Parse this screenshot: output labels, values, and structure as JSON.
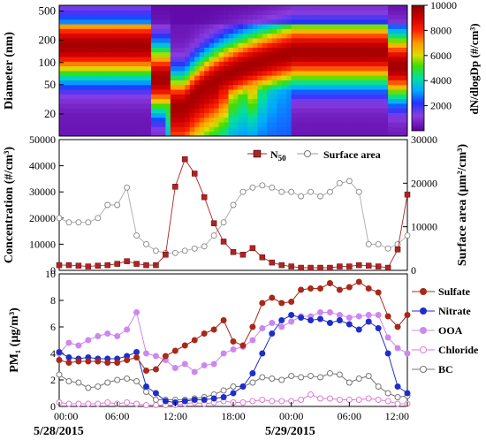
{
  "chart_data": [
    {
      "type": "heatmap",
      "ylabel": "Diameter (nm)",
      "y_ticks": [
        "20",
        "50",
        "100",
        "200",
        "500"
      ],
      "ylim_nm": [
        10,
        600
      ],
      "log_scale_y": true,
      "colorbar": {
        "label": "dN/dlogDp (#/cm³)",
        "ticks": [
          "2000",
          "4000",
          "6000",
          "8000",
          "10000"
        ],
        "range": [
          0,
          10000
        ]
      },
      "x_range_hours": [
        0,
        36
      ]
    },
    {
      "type": "line",
      "ylabel": "Concentration (#/cm³)",
      "y2label": "Surface area (µm²/cm³)",
      "ylim": [
        0,
        50000
      ],
      "y2lim": [
        0,
        30000
      ],
      "y_ticks": [
        "0",
        "10000",
        "20000",
        "30000",
        "40000",
        "50000"
      ],
      "y2_ticks": [
        "0",
        "10000",
        "20000",
        "30000"
      ],
      "legend_position": "top-right",
      "series": [
        {
          "name": "N",
          "name_sub": "50",
          "axis": "left",
          "color": "#b22222",
          "hours": [
            0,
            1,
            2,
            3,
            4,
            5,
            6,
            7,
            8,
            9,
            10,
            11,
            12,
            13,
            14,
            15,
            16,
            17,
            18,
            19,
            20,
            21,
            22,
            23,
            24,
            25,
            26,
            27,
            28,
            29,
            30,
            31,
            32,
            33,
            34,
            35,
            36
          ],
          "values": [
            2000,
            2000,
            1800,
            1500,
            1800,
            2000,
            2500,
            3500,
            2500,
            2000,
            2000,
            6000,
            32000,
            42500,
            37000,
            28000,
            18000,
            11000,
            7000,
            6000,
            8500,
            5000,
            3000,
            2000,
            1500,
            1000,
            1000,
            1000,
            1000,
            1500,
            1500,
            2000,
            1800,
            1500,
            1000,
            8000,
            29000
          ]
        },
        {
          "name": "Surface area",
          "axis": "right",
          "color": "#999999",
          "hours": [
            0,
            1,
            2,
            3,
            4,
            5,
            6,
            7,
            8,
            9,
            10,
            11,
            12,
            13,
            14,
            15,
            16,
            17,
            18,
            19,
            20,
            21,
            22,
            23,
            24,
            25,
            26,
            27,
            28,
            29,
            30,
            31,
            32,
            33,
            34,
            35,
            36
          ],
          "values": [
            12000,
            11000,
            11000,
            11000,
            12000,
            15000,
            15000,
            19000,
            8000,
            6000,
            4500,
            4000,
            4000,
            4500,
            5000,
            5500,
            8000,
            11000,
            15000,
            18000,
            19000,
            19500,
            19000,
            18000,
            18000,
            17000,
            18000,
            17000,
            18000,
            20000,
            20500,
            18000,
            6000,
            6000,
            5000,
            6000,
            8000
          ]
        }
      ]
    },
    {
      "type": "line",
      "ylabel": "PM₁ (µg/m³)",
      "ylim": [
        0,
        10
      ],
      "y_ticks": [
        "0",
        "2",
        "4",
        "6",
        "8",
        "10"
      ],
      "legend_position": "right",
      "x_ticks": [
        "00:00",
        "06:00",
        "12:00",
        "18:00",
        "00:00",
        "06:00",
        "12:00"
      ],
      "x_dates": [
        "5/28/2015",
        "5/29/2015"
      ],
      "series": [
        {
          "name": "Sulfate",
          "color": "#a8281a",
          "hours": [
            0,
            1,
            2,
            3,
            4,
            5,
            6,
            7,
            8,
            9,
            10,
            11,
            12,
            13,
            14,
            15,
            16,
            17,
            18,
            19,
            20,
            21,
            22,
            23,
            24,
            25,
            26,
            27,
            28,
            29,
            30,
            31,
            32,
            33,
            34,
            35,
            36
          ],
          "values": [
            3.5,
            3.3,
            3.4,
            3.4,
            3.4,
            3.3,
            3.3,
            3.5,
            3.7,
            2.7,
            2.8,
            3.8,
            4.2,
            4.6,
            5.0,
            5.5,
            5.8,
            6.5,
            4.9,
            4.6,
            6.0,
            7.8,
            8.2,
            7.8,
            7.9,
            8.8,
            8.9,
            8.9,
            9.3,
            8.8,
            9.0,
            9.4,
            8.9,
            8.6,
            6.8,
            6.0,
            6.9
          ]
        },
        {
          "name": "Nitrate",
          "color": "#1f2ec8",
          "hours": [
            0,
            1,
            2,
            3,
            4,
            5,
            6,
            7,
            8,
            9,
            10,
            11,
            12,
            13,
            14,
            15,
            16,
            17,
            18,
            19,
            20,
            21,
            22,
            23,
            24,
            25,
            26,
            27,
            28,
            29,
            30,
            31,
            32,
            33,
            34,
            35,
            36
          ],
          "values": [
            4.1,
            3.7,
            3.6,
            3.7,
            3.6,
            3.6,
            3.6,
            3.8,
            4.1,
            1.5,
            1.0,
            0.4,
            0.3,
            0.4,
            0.5,
            0.5,
            0.6,
            0.7,
            1.0,
            1.5,
            2.5,
            4.0,
            5.5,
            6.5,
            6.9,
            6.7,
            6.5,
            6.6,
            6.3,
            6.5,
            6.2,
            5.8,
            6.4,
            5.9,
            4.0,
            1.5,
            1.0
          ]
        },
        {
          "name": "OOA",
          "color": "#cc88ee",
          "hours": [
            0,
            1,
            2,
            3,
            4,
            5,
            6,
            7,
            8,
            9,
            10,
            11,
            12,
            13,
            14,
            15,
            16,
            17,
            18,
            19,
            20,
            21,
            22,
            23,
            24,
            25,
            26,
            27,
            28,
            29,
            30,
            31,
            32,
            33,
            34,
            35,
            36
          ],
          "values": [
            4.0,
            4.8,
            4.6,
            5.0,
            5.3,
            5.5,
            5.3,
            5.8,
            7.1,
            4.0,
            3.8,
            3.5,
            2.9,
            3.2,
            2.6,
            3.1,
            3.2,
            4.0,
            4.3,
            4.5,
            5.0,
            5.9,
            6.3,
            6.0,
            6.4,
            6.8,
            6.8,
            7.1,
            7.1,
            6.9,
            6.7,
            6.8,
            6.9,
            6.9,
            5.2,
            4.4,
            4.0
          ]
        },
        {
          "name": "Chloride",
          "color": "#e07bd0",
          "hours": [
            0,
            1,
            2,
            3,
            4,
            5,
            6,
            7,
            8,
            9,
            10,
            11,
            12,
            13,
            14,
            15,
            16,
            17,
            18,
            19,
            20,
            21,
            22,
            23,
            24,
            25,
            26,
            27,
            28,
            29,
            30,
            31,
            32,
            33,
            34,
            35,
            36
          ],
          "values": [
            0.3,
            0.2,
            0.2,
            0.2,
            0.2,
            0.3,
            0.2,
            0.3,
            0.2,
            0.1,
            0.1,
            0.1,
            0.1,
            0.2,
            0.3,
            0.2,
            0.3,
            0.4,
            0.3,
            0.3,
            0.4,
            0.5,
            0.4,
            0.4,
            0.4,
            0.5,
            0.9,
            0.6,
            0.6,
            0.5,
            0.5,
            0.5,
            0.6,
            0.5,
            0.4,
            0.2,
            0.2
          ]
        },
        {
          "name": "BC",
          "color": "#777777",
          "hours": [
            0,
            1,
            2,
            3,
            4,
            5,
            6,
            7,
            8,
            9,
            10,
            11,
            12,
            13,
            14,
            15,
            16,
            17,
            18,
            19,
            20,
            21,
            22,
            23,
            24,
            25,
            26,
            27,
            28,
            29,
            30,
            31,
            32,
            33,
            34,
            35,
            36
          ],
          "values": [
            2.4,
            1.9,
            1.8,
            1.4,
            1.5,
            1.8,
            2.0,
            2.1,
            1.9,
            1.1,
            0.5,
            0.5,
            0.5,
            0.5,
            0.6,
            0.7,
            0.9,
            1.2,
            1.5,
            1.5,
            1.8,
            2.2,
            2.1,
            2.0,
            2.3,
            2.2,
            2.3,
            2.2,
            2.5,
            2.4,
            1.8,
            2.1,
            2.3,
            1.5,
            1.0,
            0.7,
            0.8
          ]
        }
      ]
    }
  ]
}
